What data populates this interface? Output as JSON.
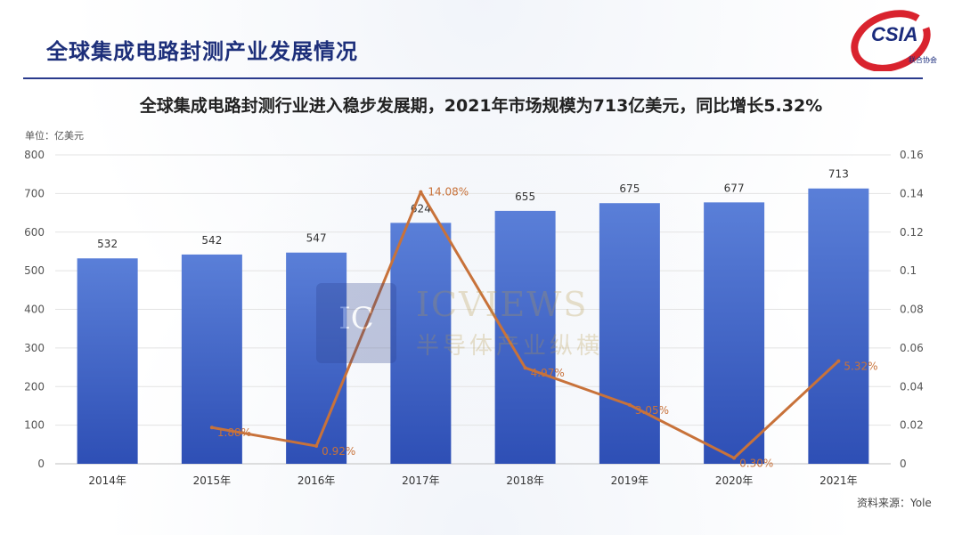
{
  "header": {
    "title": "全球集成电路封测产业发展情况",
    "logo_text": "CSIA",
    "logo_sub": "联合协会"
  },
  "subtitle": "全球集成电路封测行业进入稳步发展期，2021年市场规模为713亿美元，同比增长5.32%",
  "unit_label": "单位：亿美元",
  "source_note": "资料来源：Yole",
  "watermark": {
    "mark": "IC",
    "line1": "ICVIEWS",
    "line2": "半导体产业纵横"
  },
  "colors": {
    "bar": "#4a6fd0",
    "bar_dark": "#2e4fb5",
    "line": "#c8723a",
    "title": "#1d2f7a",
    "logo_red": "#d9232e"
  },
  "chart_data": {
    "type": "bar",
    "categories": [
      "2014年",
      "2015年",
      "2016年",
      "2017年",
      "2018年",
      "2019年",
      "2020年",
      "2021年"
    ],
    "series": [
      {
        "axis": "left",
        "chart": "bar",
        "values": [
          532,
          542,
          547,
          624,
          655,
          675,
          677,
          713
        ],
        "labels": [
          "532",
          "542",
          "547",
          "624",
          "655",
          "675",
          "677",
          "713"
        ]
      },
      {
        "axis": "right",
        "chart": "line",
        "values": [
          null,
          0.0188,
          0.0092,
          0.1408,
          0.0497,
          0.0305,
          0.003,
          0.0532
        ],
        "labels": [
          null,
          "1.88%",
          "0.92%",
          "14.08%",
          "4.97%",
          "3.05%",
          "0.30%",
          "5.32%"
        ]
      }
    ],
    "y_left": {
      "min": 0,
      "max": 800,
      "ticks": [
        "0",
        "100",
        "200",
        "300",
        "400",
        "500",
        "600",
        "700",
        "800"
      ]
    },
    "y_right": {
      "min": 0,
      "max": 0.16,
      "ticks": [
        "0",
        "0.02",
        "0.04",
        "0.06",
        "0.08",
        "0.1",
        "0.12",
        "0.14",
        "0.16"
      ]
    },
    "grid": true,
    "legend": "none"
  }
}
